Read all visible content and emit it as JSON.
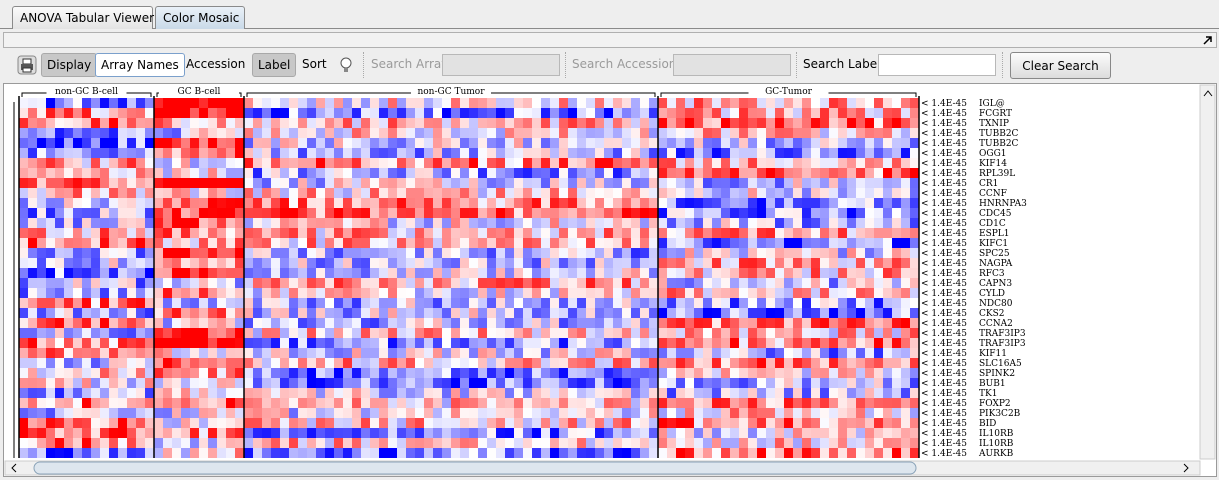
{
  "tabs": [
    "ANOVA Tabular Viewer",
    "Color Mosaic"
  ],
  "toolbar": {
    "display": "Display",
    "array_names": "Array Names",
    "accession": "Accession",
    "label": "Label",
    "sort": "Sort",
    "search_array": "Search Array",
    "search_accession": "Search Accession",
    "search_label": "Search Label",
    "clear_search": "Clear Search"
  },
  "groups": [
    "non-GC B-cell",
    "GC B-cell",
    "non-GC Tumor",
    "GC-Tumor"
  ],
  "rows": [
    {
      "pvalue": "< 1.4E-45",
      "gene": "IGL@"
    },
    {
      "pvalue": "< 1.4E-45",
      "gene": "FCGRT"
    },
    {
      "pvalue": "< 1.4E-45",
      "gene": "TXNIP"
    },
    {
      "pvalue": "< 1.4E-45",
      "gene": "TUBB2C"
    },
    {
      "pvalue": "< 1.4E-45",
      "gene": "TUBB2C"
    },
    {
      "pvalue": "< 1.4E-45",
      "gene": "OGG1"
    },
    {
      "pvalue": "< 1.4E-45",
      "gene": "KIF14"
    },
    {
      "pvalue": "< 1.4E-45",
      "gene": "RPL39L"
    },
    {
      "pvalue": "< 1.4E-45",
      "gene": "CR1"
    },
    {
      "pvalue": "< 1.4E-45",
      "gene": "CCNF"
    },
    {
      "pvalue": "< 1.4E-45",
      "gene": "HNRNPA3"
    },
    {
      "pvalue": "< 1.4E-45",
      "gene": "CDC45"
    },
    {
      "pvalue": "< 1.4E-45",
      "gene": "CD1C"
    },
    {
      "pvalue": "< 1.4E-45",
      "gene": "ESPL1"
    },
    {
      "pvalue": "< 1.4E-45",
      "gene": "KIFC1"
    },
    {
      "pvalue": "< 1.4E-45",
      "gene": "SPC25"
    },
    {
      "pvalue": "< 1.4E-45",
      "gene": "NAGPA"
    },
    {
      "pvalue": "< 1.4E-45",
      "gene": "RFC3"
    },
    {
      "pvalue": "< 1.4E-45",
      "gene": "CAPN3"
    },
    {
      "pvalue": "< 1.4E-45",
      "gene": "CYLD"
    },
    {
      "pvalue": "< 1.4E-45",
      "gene": "NDC80"
    },
    {
      "pvalue": "< 1.4E-45",
      "gene": "CKS2"
    },
    {
      "pvalue": "< 1.4E-45",
      "gene": "CCNA2"
    },
    {
      "pvalue": "< 1.4E-45",
      "gene": "TRAF3IP3"
    },
    {
      "pvalue": "< 1.4E-45",
      "gene": "TRAF3IP3"
    },
    {
      "pvalue": "< 1.4E-45",
      "gene": "KIF11"
    },
    {
      "pvalue": "< 1.4E-45",
      "gene": "SLC16A5"
    },
    {
      "pvalue": "< 1.4E-45",
      "gene": "SPINK2"
    },
    {
      "pvalue": "< 1.4E-45",
      "gene": "BUB1"
    },
    {
      "pvalue": "< 1.4E-45",
      "gene": "TK1"
    },
    {
      "pvalue": "< 1.4E-45",
      "gene": "FOXP2"
    },
    {
      "pvalue": "< 1.4E-45",
      "gene": "PIK3C2B"
    },
    {
      "pvalue": "< 1.4E-45",
      "gene": "BID"
    },
    {
      "pvalue": "< 1.4E-45",
      "gene": "IL10RB"
    },
    {
      "pvalue": "< 1.4E-45",
      "gene": "IL10RB"
    },
    {
      "pvalue": "< 1.4E-45",
      "gene": "AURKB"
    }
  ]
}
